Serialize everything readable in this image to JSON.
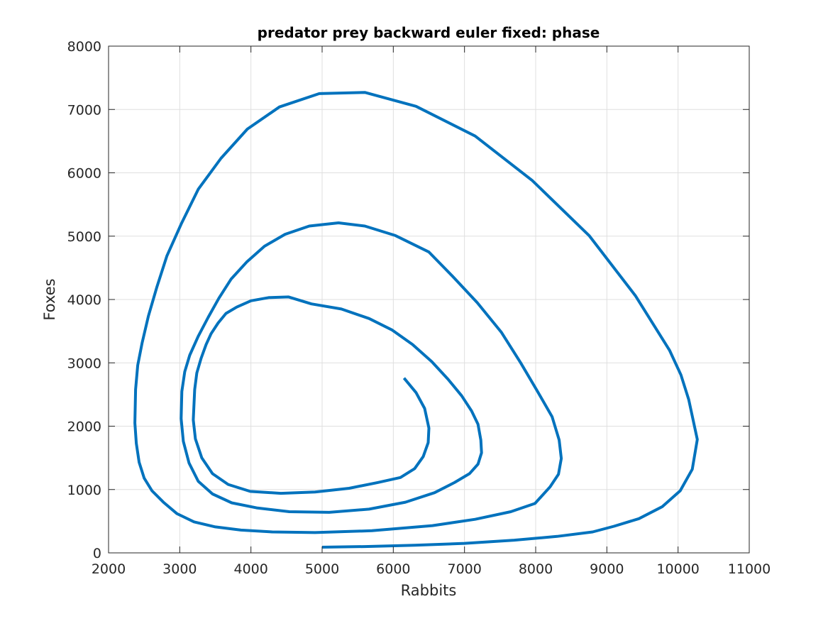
{
  "chart_data": {
    "type": "line",
    "title": "predator prey backward euler fixed: phase",
    "xlabel": "Rabbits",
    "ylabel": "Foxes",
    "xlim": [
      2000,
      11000
    ],
    "ylim": [
      0,
      8000
    ],
    "xticks": [
      2000,
      3000,
      4000,
      5000,
      6000,
      7000,
      8000,
      9000,
      10000,
      11000
    ],
    "yticks": [
      0,
      1000,
      2000,
      3000,
      4000,
      5000,
      6000,
      7000,
      8000
    ],
    "xtick_labels": [
      "2000",
      "3000",
      "4000",
      "5000",
      "6000",
      "7000",
      "8000",
      "9000",
      "10000",
      "11000"
    ],
    "ytick_labels": [
      "0",
      "1000",
      "2000",
      "3000",
      "4000",
      "5000",
      "6000",
      "7000",
      "8000"
    ],
    "grid": true,
    "line_color": "#0072BD",
    "series": [
      {
        "x": [
          5000,
          5600,
          6300,
          7000,
          7700,
          8300,
          8800,
          9100,
          9450,
          9780,
          10030,
          10200,
          10270,
          10150,
          10040,
          9880,
          9400,
          8750,
          7950,
          7150,
          6320,
          5600,
          4960,
          4400,
          3950,
          3580,
          3260,
          3020,
          2820,
          2680,
          2560,
          2470,
          2410,
          2380,
          2370,
          2390,
          2430,
          2500,
          2610,
          2770,
          2960,
          3200,
          3500,
          3860,
          4300,
          4900,
          5700,
          6550,
          7150,
          7650,
          7990,
          8200,
          8320,
          8360,
          8330,
          8230,
          8020,
          7790,
          7520,
          7180,
          6830,
          6500,
          6030,
          5600,
          5230,
          4820,
          4480,
          4190,
          3940,
          3720,
          3550,
          3400,
          3260,
          3140,
          3070,
          3030,
          3020,
          3050,
          3130,
          3260,
          3460,
          3730,
          4080,
          4540,
          5100,
          5660,
          6170,
          6580,
          6860,
          7070,
          7190,
          7240,
          7230,
          7190,
          7100,
          6960,
          6770,
          6540,
          6270,
          5980,
          5660,
          5270,
          4850,
          4530,
          4250,
          4000,
          3800,
          3650,
          3540,
          3440,
          3370,
          3300,
          3240,
          3210,
          3190,
          3220,
          3310,
          3460,
          3680,
          3990,
          4420,
          4900,
          5380,
          5780,
          6100,
          6300,
          6420,
          6490,
          6500,
          6440,
          6320,
          6150
        ],
        "y": [
          90,
          100,
          120,
          150,
          200,
          260,
          330,
          420,
          540,
          730,
          980,
          1320,
          1790,
          2420,
          2810,
          3200,
          4060,
          5010,
          5880,
          6580,
          7050,
          7270,
          7250,
          7040,
          6690,
          6230,
          5740,
          5190,
          4690,
          4200,
          3740,
          3310,
          2960,
          2580,
          2050,
          1730,
          1430,
          1180,
          980,
          800,
          620,
          490,
          410,
          360,
          330,
          320,
          350,
          430,
          530,
          650,
          780,
          1040,
          1240,
          1490,
          1780,
          2150,
          2560,
          3000,
          3480,
          3950,
          4370,
          4750,
          5010,
          5160,
          5210,
          5160,
          5030,
          4840,
          4590,
          4320,
          4020,
          3720,
          3420,
          3120,
          2860,
          2550,
          2120,
          1760,
          1420,
          1130,
          930,
          790,
          710,
          650,
          640,
          690,
          800,
          950,
          1110,
          1250,
          1400,
          1580,
          1780,
          2030,
          2240,
          2480,
          2740,
          3020,
          3290,
          3520,
          3700,
          3850,
          3930,
          4040,
          4030,
          3980,
          3880,
          3780,
          3630,
          3460,
          3290,
          3070,
          2840,
          2580,
          2100,
          1800,
          1500,
          1250,
          1080,
          970,
          940,
          960,
          1020,
          1110,
          1190,
          1330,
          1520,
          1740,
          1970,
          2280,
          2530,
          2760
        ]
      }
    ]
  }
}
